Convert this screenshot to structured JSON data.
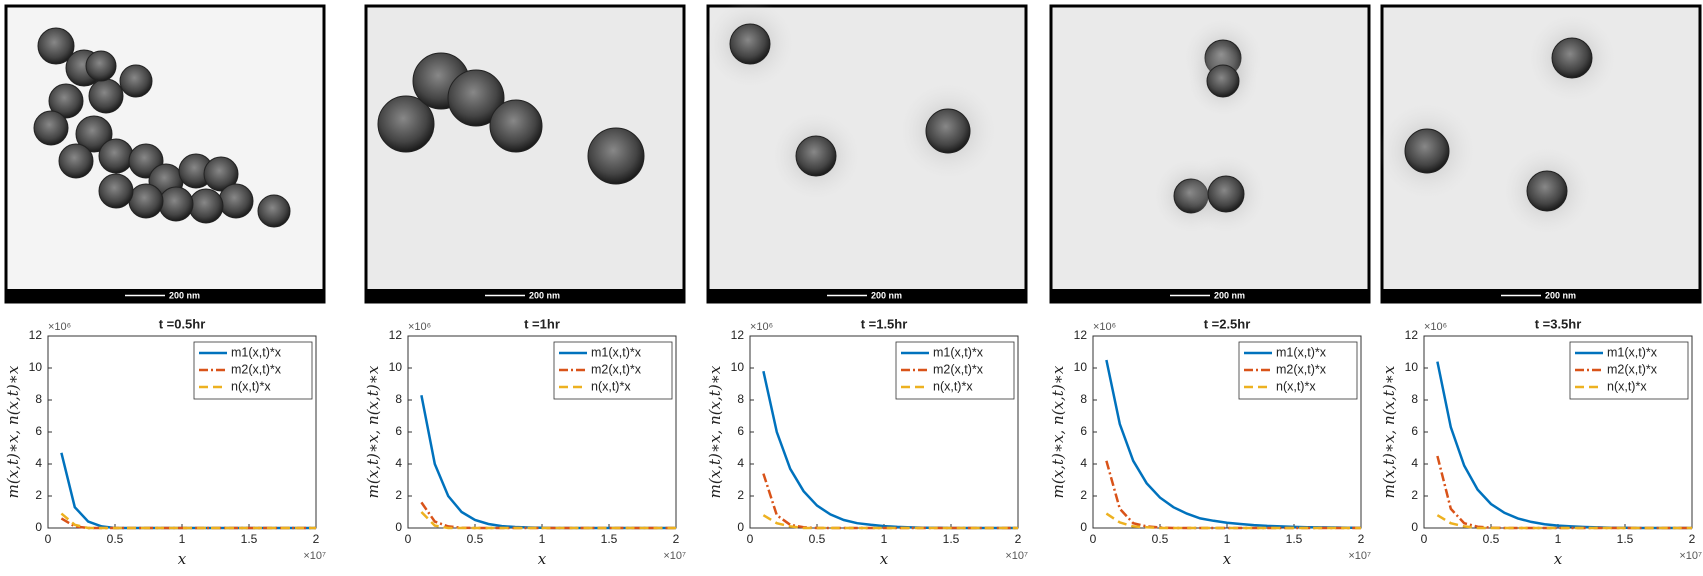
{
  "images": [
    {
      "scale_bar": "200 nm"
    },
    {
      "scale_bar": "200 nm"
    },
    {
      "scale_bar": "200 nm"
    },
    {
      "scale_bar": "200 nm"
    },
    {
      "scale_bar": "200 nm"
    }
  ],
  "chart_data": [
    {
      "type": "line",
      "title": "t =0.5hr",
      "y_label": "m(x,t)∗x,  n(x,t)∗x",
      "x_label": "x",
      "y_multiplier": "×10⁶",
      "x_multiplier": "×10⁷",
      "x": [
        0.1,
        0.2,
        0.3,
        0.4,
        0.5,
        0.6,
        0.7,
        0.8,
        0.9,
        1.0,
        1.1,
        1.2,
        1.3,
        1.4,
        1.5,
        1.6,
        1.7,
        1.8,
        1.9,
        2.0
      ],
      "series": [
        {
          "name": "m1(x,t)*x",
          "color": "#0072bd",
          "style": "solid",
          "values": [
            4.7,
            1.3,
            0.4,
            0.1,
            0,
            0,
            0,
            0,
            0,
            0,
            0,
            0,
            0,
            0,
            0,
            0,
            0,
            0,
            0,
            0
          ]
        },
        {
          "name": "m2(x,t)*x",
          "color": "#d95319",
          "style": "dashdot",
          "values": [
            0.6,
            0.1,
            0,
            0,
            0,
            0,
            0,
            0,
            0,
            0,
            0,
            0,
            0,
            0,
            0,
            0,
            0,
            0,
            0,
            0
          ]
        },
        {
          "name": "n(x,t)*x",
          "color": "#edb120",
          "style": "dashed",
          "values": [
            0.9,
            0.2,
            0,
            0,
            0,
            0,
            0,
            0,
            0,
            0,
            0,
            0,
            0,
            0,
            0,
            0,
            0,
            0,
            0,
            0
          ]
        }
      ],
      "xlim": [
        0,
        2
      ],
      "ylim": [
        0,
        12
      ],
      "xticks": [
        0,
        0.5,
        1,
        1.5,
        2
      ],
      "yticks": [
        0,
        2,
        4,
        6,
        8,
        10,
        12
      ],
      "legend": "upper right"
    },
    {
      "type": "line",
      "title": "t =1hr",
      "y_label": "m(x,t)∗x,  n(x,t)∗x",
      "x_label": "x",
      "y_multiplier": "×10⁶",
      "x_multiplier": "×10⁷",
      "x": [
        0.1,
        0.2,
        0.3,
        0.4,
        0.5,
        0.6,
        0.7,
        0.8,
        0.9,
        1.0,
        1.1,
        1.2,
        1.3,
        1.4,
        1.5,
        1.6,
        1.7,
        1.8,
        1.9,
        2.0
      ],
      "series": [
        {
          "name": "m1(x,t)*x",
          "color": "#0072bd",
          "style": "solid",
          "values": [
            8.3,
            4.0,
            2.0,
            1.0,
            0.5,
            0.25,
            0.12,
            0.06,
            0.03,
            0.01,
            0,
            0,
            0,
            0,
            0,
            0,
            0,
            0,
            0,
            0
          ]
        },
        {
          "name": "m2(x,t)*x",
          "color": "#d95319",
          "style": "dashdot",
          "values": [
            1.6,
            0.4,
            0.1,
            0.02,
            0,
            0,
            0,
            0,
            0,
            0,
            0,
            0,
            0,
            0,
            0,
            0,
            0,
            0,
            0,
            0
          ]
        },
        {
          "name": "n(x,t)*x",
          "color": "#edb120",
          "style": "dashed",
          "values": [
            1.0,
            0.15,
            0,
            0,
            0,
            0,
            0,
            0,
            0,
            0,
            0,
            0,
            0,
            0,
            0,
            0,
            0,
            0,
            0,
            0
          ]
        }
      ],
      "xlim": [
        0,
        2
      ],
      "ylim": [
        0,
        12
      ],
      "xticks": [
        0,
        0.5,
        1,
        1.5,
        2
      ],
      "yticks": [
        0,
        2,
        4,
        6,
        8,
        10,
        12
      ],
      "legend": "upper right"
    },
    {
      "type": "line",
      "title": "t =1.5hr",
      "y_label": "m(x,t)∗x,  n(x,t)∗x",
      "x_label": "x",
      "y_multiplier": "×10⁶",
      "x_multiplier": "×10⁷",
      "x": [
        0.1,
        0.2,
        0.3,
        0.4,
        0.5,
        0.6,
        0.7,
        0.8,
        0.9,
        1.0,
        1.1,
        1.2,
        1.3,
        1.4,
        1.5,
        1.6,
        1.7,
        1.8,
        1.9,
        2.0
      ],
      "series": [
        {
          "name": "m1(x,t)*x",
          "color": "#0072bd",
          "style": "solid",
          "values": [
            9.8,
            6.0,
            3.7,
            2.3,
            1.4,
            0.85,
            0.5,
            0.3,
            0.2,
            0.12,
            0.07,
            0.04,
            0.02,
            0.01,
            0,
            0,
            0,
            0,
            0,
            0
          ]
        },
        {
          "name": "m2(x,t)*x",
          "color": "#d95319",
          "style": "dashdot",
          "values": [
            3.4,
            0.8,
            0.2,
            0.05,
            0,
            0,
            0,
            0,
            0,
            0,
            0,
            0,
            0,
            0,
            0,
            0,
            0,
            0,
            0,
            0
          ]
        },
        {
          "name": "n(x,t)*x",
          "color": "#edb120",
          "style": "dashed",
          "values": [
            0.8,
            0.3,
            0.1,
            0,
            0,
            0,
            0,
            0,
            0,
            0,
            0,
            0,
            0,
            0,
            0,
            0,
            0,
            0,
            0,
            0
          ]
        }
      ],
      "xlim": [
        0,
        2
      ],
      "ylim": [
        0,
        12
      ],
      "xticks": [
        0,
        0.5,
        1,
        1.5,
        2
      ],
      "yticks": [
        0,
        2,
        4,
        6,
        8,
        10,
        12
      ],
      "legend": "upper right"
    },
    {
      "type": "line",
      "title": "t =2.5hr",
      "y_label": "m(x,t)∗x,  n(x,t)∗x",
      "x_label": "x",
      "y_multiplier": "×10⁶",
      "x_multiplier": "×10⁷",
      "x": [
        0.1,
        0.2,
        0.3,
        0.4,
        0.5,
        0.6,
        0.7,
        0.8,
        0.9,
        1.0,
        1.1,
        1.2,
        1.3,
        1.4,
        1.5,
        1.6,
        1.7,
        1.8,
        1.9,
        2.0
      ],
      "series": [
        {
          "name": "m1(x,t)*x",
          "color": "#0072bd",
          "style": "solid",
          "values": [
            10.5,
            6.5,
            4.2,
            2.8,
            1.9,
            1.3,
            0.9,
            0.6,
            0.45,
            0.33,
            0.25,
            0.18,
            0.13,
            0.1,
            0.07,
            0.05,
            0.04,
            0.03,
            0.02,
            0.01
          ]
        },
        {
          "name": "m2(x,t)*x",
          "color": "#d95319",
          "style": "dashdot",
          "values": [
            4.2,
            1.2,
            0.3,
            0.1,
            0.03,
            0,
            0,
            0,
            0,
            0,
            0,
            0,
            0,
            0,
            0,
            0,
            0,
            0,
            0,
            0
          ]
        },
        {
          "name": "n(x,t)*x",
          "color": "#edb120",
          "style": "dashed",
          "values": [
            0.9,
            0.35,
            0.1,
            0.05,
            0,
            0,
            0,
            0,
            0,
            0,
            0,
            0,
            0,
            0,
            0,
            0,
            0,
            0,
            0,
            0
          ]
        }
      ],
      "xlim": [
        0,
        2
      ],
      "ylim": [
        0,
        12
      ],
      "xticks": [
        0,
        0.5,
        1,
        1.5,
        2
      ],
      "yticks": [
        0,
        2,
        4,
        6,
        8,
        10,
        12
      ],
      "legend": "upper right"
    },
    {
      "type": "line",
      "title": "t =3.5hr",
      "y_label": "m(x,t)∗x,  n(x,t)∗x",
      "x_label": "x",
      "y_multiplier": "×10⁶",
      "x_multiplier": "×10⁷",
      "x": [
        0.1,
        0.2,
        0.3,
        0.4,
        0.5,
        0.6,
        0.7,
        0.8,
        0.9,
        1.0,
        1.1,
        1.2,
        1.3,
        1.4,
        1.5,
        1.6,
        1.7,
        1.8,
        1.9,
        2.0
      ],
      "series": [
        {
          "name": "m1(x,t)*x",
          "color": "#0072bd",
          "style": "solid",
          "values": [
            10.4,
            6.3,
            3.9,
            2.4,
            1.5,
            0.95,
            0.6,
            0.38,
            0.24,
            0.15,
            0.1,
            0.06,
            0.04,
            0.02,
            0.01,
            0,
            0,
            0,
            0,
            0
          ]
        },
        {
          "name": "m2(x,t)*x",
          "color": "#d95319",
          "style": "dashdot",
          "values": [
            4.5,
            1.2,
            0.3,
            0.08,
            0.02,
            0,
            0,
            0,
            0,
            0,
            0,
            0,
            0,
            0,
            0,
            0,
            0,
            0,
            0,
            0
          ]
        },
        {
          "name": "n(x,t)*x",
          "color": "#edb120",
          "style": "dashed",
          "values": [
            0.8,
            0.3,
            0.1,
            0,
            0,
            0,
            0,
            0,
            0,
            0,
            0,
            0,
            0,
            0,
            0,
            0,
            0,
            0,
            0,
            0
          ]
        }
      ],
      "xlim": [
        0,
        2
      ],
      "ylim": [
        0,
        12
      ],
      "xticks": [
        0,
        0.5,
        1,
        1.5,
        2
      ],
      "yticks": [
        0,
        2,
        4,
        6,
        8,
        10,
        12
      ],
      "legend": "upper right"
    }
  ]
}
